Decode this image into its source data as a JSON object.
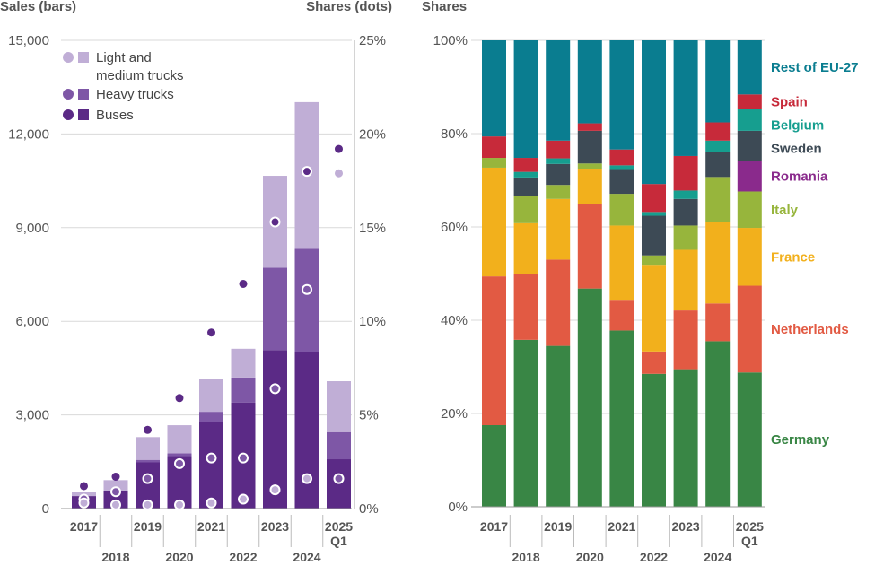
{
  "chart_data": [
    {
      "type": "bar",
      "subtype": "stacked-with-dots",
      "left_axis_title": "Sales (bars)",
      "right_axis_title": "Shares (dots)",
      "categories": [
        "2017",
        "2018",
        "2019",
        "2020",
        "2021",
        "2022",
        "2023",
        "2024",
        "2025\nQ1"
      ],
      "category_labels": [
        {
          "top": "2017",
          "bottom": ""
        },
        {
          "top": "2018",
          "bottom": ""
        },
        {
          "top": "2019",
          "bottom": ""
        },
        {
          "top": "2020",
          "bottom": ""
        },
        {
          "top": "2021",
          "bottom": ""
        },
        {
          "top": "2022",
          "bottom": ""
        },
        {
          "top": "2023",
          "bottom": ""
        },
        {
          "top": "2024",
          "bottom": ""
        },
        {
          "top": "2025",
          "bottom": "Q1"
        }
      ],
      "ylim": [
        0,
        15000
      ],
      "yticks": [
        "0",
        "3,000",
        "6,000",
        "9,000",
        "12,000",
        "15,000"
      ],
      "ytick_values": [
        0,
        3000,
        6000,
        9000,
        12000,
        15000
      ],
      "y2lim": [
        0,
        25
      ],
      "y2ticks": [
        "0%",
        "5%",
        "10%",
        "15%",
        "20%",
        "25%"
      ],
      "y2tick_values": [
        0,
        5,
        10,
        15,
        20,
        25
      ],
      "grid": true,
      "legend_position": "top-left",
      "series": [
        {
          "name": "Buses",
          "color": "#5b2a86",
          "bar_values": [
            400,
            580,
            1480,
            1680,
            2780,
            3400,
            5080,
            5000,
            1580
          ],
          "share_values": [
            1.2,
            1.7,
            4.2,
            5.9,
            9.4,
            12.0,
            15.3,
            18.0,
            19.2
          ]
        },
        {
          "name": "Heavy trucks",
          "color": "#7e57a6",
          "bar_values": [
            0,
            0,
            80,
            90,
            320,
            800,
            2640,
            3320,
            870
          ],
          "share_values": [
            0.5,
            0.9,
            1.6,
            2.4,
            2.7,
            2.7,
            6.4,
            11.7,
            1.6
          ]
        },
        {
          "name": "Light and\nmedium trucks",
          "label_lines": [
            "Light and",
            "medium trucks"
          ],
          "color": "#c0aed6",
          "bar_values": [
            130,
            330,
            730,
            900,
            1060,
            920,
            2940,
            4700,
            1630
          ],
          "share_values": [
            0.3,
            0.2,
            0.2,
            0.2,
            0.3,
            0.5,
            1.0,
            1.6,
            17.9
          ]
        }
      ]
    },
    {
      "type": "bar",
      "subtype": "stacked-100-percent",
      "left_axis_title": "Shares",
      "categories": [
        "2017",
        "2018",
        "2019",
        "2020",
        "2021",
        "2022",
        "2023",
        "2024",
        "2025\nQ1"
      ],
      "ylim": [
        0,
        100
      ],
      "yticks": [
        "0%",
        "20%",
        "40%",
        "60%",
        "80%",
        "100%"
      ],
      "ytick_values": [
        0,
        20,
        40,
        60,
        80,
        100
      ],
      "grid": true,
      "legend_position": "right",
      "series": [
        {
          "name": "Germany",
          "color": "#398645",
          "values": [
            17.5,
            35.8,
            34.5,
            46.8,
            37.8,
            28.5,
            29.5,
            35.5,
            28.8
          ]
        },
        {
          "name": "Netherlands",
          "color": "#e25a43",
          "values": [
            31.9,
            14.2,
            18.5,
            18.2,
            6.4,
            4.8,
            12.6,
            8.1,
            18.6
          ]
        },
        {
          "name": "France",
          "color": "#f2b01c",
          "values": [
            23.3,
            10.8,
            13.0,
            7.5,
            16.1,
            18.4,
            13.0,
            17.5,
            12.4
          ]
        },
        {
          "name": "Italy",
          "color": "#97b53c",
          "values": [
            2.1,
            5.9,
            3.0,
            1.1,
            6.8,
            2.2,
            5.2,
            9.6,
            7.8
          ]
        },
        {
          "name": "Romania",
          "color": "#8a2a8c",
          "values": [
            0,
            0,
            0,
            0,
            0,
            0,
            0,
            0,
            6.6
          ]
        },
        {
          "name": "Sweden",
          "color": "#3d4a55",
          "values": [
            0,
            3.9,
            4.5,
            7.0,
            5.3,
            8.5,
            5.7,
            5.4,
            6.4
          ]
        },
        {
          "name": "Belgium",
          "color": "#169e8f",
          "values": [
            0,
            1.2,
            1.2,
            0,
            0.8,
            0.8,
            1.8,
            2.4,
            4.6
          ]
        },
        {
          "name": "Spain",
          "color": "#c72a3a",
          "values": [
            4.6,
            3.0,
            3.8,
            1.6,
            3.4,
            6.0,
            7.4,
            3.9,
            3.2
          ]
        },
        {
          "name": "Rest of EU-27",
          "color": "#0a7d90",
          "values": [
            20.6,
            25.2,
            21.5,
            17.8,
            23.4,
            30.8,
            24.8,
            17.6,
            11.6
          ]
        }
      ]
    }
  ]
}
